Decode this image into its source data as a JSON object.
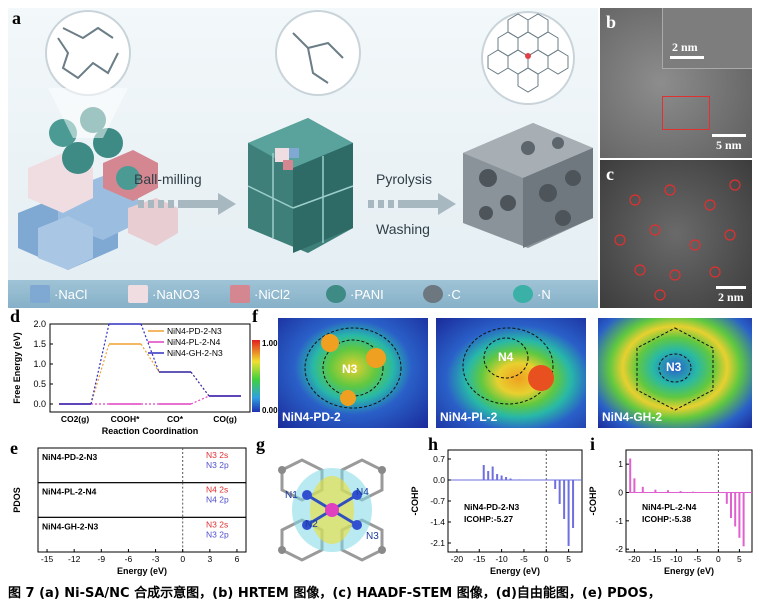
{
  "panels": {
    "a": "a",
    "b": "b",
    "c": "c",
    "d": "d",
    "e": "e",
    "f": "f",
    "g": "g",
    "h": "h",
    "i": "i"
  },
  "schematic": {
    "step1": "Ball-milling",
    "step2": "Pyrolysis",
    "step3": "Washing",
    "legend": [
      {
        "label": "NaCl",
        "color": "#7fa9d3"
      },
      {
        "label": "NaNO3",
        "color": "#f0dde1"
      },
      {
        "label": "NiCl2",
        "color": "#d48791"
      },
      {
        "label": "PANI",
        "color": "#3e8a85"
      },
      {
        "label": "C",
        "color": "#6d7780"
      },
      {
        "label": "N",
        "color": "#3bb0a6"
      }
    ]
  },
  "hrtem": {
    "scale_inset": "2 nm",
    "scale_main": "5 nm"
  },
  "haadf": {
    "scale": "2 nm"
  },
  "elf_maps": {
    "colorbar_max": "1.00",
    "colorbar_min": "0.00",
    "maps": [
      {
        "center": "N3",
        "name": "NiN4-PD-2"
      },
      {
        "center": "N4",
        "name": "NiN4-PL-2"
      },
      {
        "center": "N3",
        "name": "NiN4-GH-2"
      }
    ]
  },
  "structure_g": {
    "atom_labels": [
      "N1",
      "N2",
      "N3",
      "N4"
    ]
  },
  "caption": "图 7   (a) Ni-SA/NC 合成示意图，(b) HRTEM 图像，(c) HAADF-STEM 图像，(d)自由能图，(e) PDOS，",
  "chart_data": [
    {
      "type": "line",
      "panel": "d",
      "ylabel": "Free Energy (eV)",
      "xlabel": "Reaction Coordination",
      "categories": [
        "CO2(g)",
        "COOH*",
        "CO*",
        "CO(g)"
      ],
      "ylim": [
        -0.2,
        2.0
      ],
      "yticks": [
        "0.0",
        "0.5",
        "1.0",
        "1.5",
        "2.0"
      ],
      "legend_position": "top-right",
      "series": [
        {
          "name": "NiN4-PD-2-N3",
          "color": "#f0a030",
          "values": [
            0.0,
            1.5,
            0.8,
            0.2
          ]
        },
        {
          "name": "NiN4-PL-2-N4",
          "color": "#e040c0",
          "values": [
            0.0,
            0.0,
            0.0,
            0.2
          ]
        },
        {
          "name": "NiN4-GH-2-N3",
          "color": "#3030c0",
          "values": [
            0.0,
            2.0,
            0.8,
            0.2
          ]
        }
      ]
    },
    {
      "type": "line",
      "panel": "e",
      "ylabel": "PDOS",
      "xlabel": "Energy (eV)",
      "xlim": [
        -16,
        7
      ],
      "xticks": [
        -15,
        -12,
        -9,
        -6,
        -3,
        0,
        3,
        6
      ],
      "subpanels": [
        {
          "title": "NiN4-PD-2-N3",
          "legend": [
            "N3 2s",
            "N3 2p"
          ]
        },
        {
          "title": "NiN4-PL-2-N4",
          "legend": [
            "N4 2s",
            "N4 2p"
          ]
        },
        {
          "title": "NiN4-GH-2-N3",
          "legend": [
            "N3 2s",
            "N3 2p"
          ]
        }
      ]
    },
    {
      "type": "bar",
      "panel": "h",
      "ylabel": "-COHP",
      "xlabel": "Energy (eV)",
      "xlim": [
        -22,
        8
      ],
      "xticks": [
        -20,
        -15,
        -10,
        -5,
        0,
        5
      ],
      "ylim": [
        -2.4,
        1.0
      ],
      "yticks": [
        "0.7",
        "0.0",
        "-0.7",
        "-1.4",
        "-2.1"
      ],
      "annotation": [
        "NiN4-PD-2-N3",
        "ICOHP:-5.27"
      ],
      "color": "#6f6fe0"
    },
    {
      "type": "bar",
      "panel": "i",
      "ylabel": "-COHP",
      "xlabel": "Energy (eV)",
      "xlim": [
        -22,
        8
      ],
      "xticks": [
        -20,
        -15,
        -10,
        -5,
        0,
        5
      ],
      "ylim": [
        -2.1,
        1.5
      ],
      "yticks": [
        "1",
        "0",
        "-1",
        "-2"
      ],
      "annotation": [
        "NiN4-PL-2-N4",
        "ICOHP:-5.38"
      ],
      "color": "#e060d0"
    }
  ]
}
